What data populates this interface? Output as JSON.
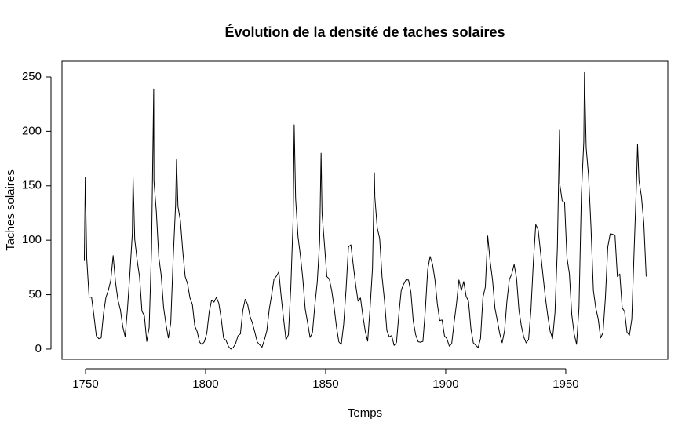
{
  "chart_data": {
    "type": "line",
    "title": "Évolution de la densité de taches solaires",
    "x_label": "Temps",
    "y_label": "Taches solaires",
    "color": "#000000",
    "xlim": [
      1740.2,
      1992.5
    ],
    "ylim": [
      -9.4,
      264.4
    ],
    "xticks": [
      1750,
      1800,
      1850,
      1900,
      1950
    ],
    "yticks": [
      0,
      50,
      100,
      150,
      200,
      250
    ],
    "x": [
      1749.5,
      1749.9,
      1750.5,
      1751.5,
      1752.5,
      1753.5,
      1754.5,
      1755.5,
      1756.5,
      1757.5,
      1758.5,
      1759.5,
      1760.5,
      1761.5,
      1762.5,
      1763.5,
      1764.5,
      1765.5,
      1766.5,
      1767.5,
      1768.5,
      1769.5,
      1769.8,
      1770.5,
      1771.5,
      1772.5,
      1773.5,
      1774.5,
      1775.5,
      1776.5,
      1777.5,
      1778.4,
      1778.5,
      1779.5,
      1780.5,
      1781.5,
      1782.5,
      1783.5,
      1784.5,
      1785.5,
      1786.5,
      1787.5,
      1787.9,
      1788.5,
      1789.5,
      1790.5,
      1791.5,
      1792.5,
      1793.5,
      1794.5,
      1795.5,
      1796.5,
      1797.5,
      1798.5,
      1799.5,
      1800.5,
      1801.5,
      1802.5,
      1803.5,
      1804.5,
      1805.5,
      1806.5,
      1807.5,
      1808.5,
      1809.5,
      1810.5,
      1811.5,
      1812.5,
      1813.5,
      1814.5,
      1815.5,
      1816.5,
      1817.5,
      1818.5,
      1819.5,
      1820.5,
      1821.5,
      1822.5,
      1823.5,
      1824.5,
      1825.5,
      1826.5,
      1827.5,
      1828.5,
      1829.5,
      1830.5,
      1831.5,
      1832.5,
      1833.5,
      1834.5,
      1835.5,
      1836.5,
      1836.9,
      1837.5,
      1838.5,
      1839.5,
      1840.5,
      1841.5,
      1842.5,
      1843.5,
      1844.5,
      1845.5,
      1846.5,
      1847.5,
      1848.1,
      1848.5,
      1849.5,
      1850.5,
      1851.5,
      1852.5,
      1853.5,
      1854.5,
      1855.5,
      1856.5,
      1857.5,
      1858.5,
      1859.5,
      1860.5,
      1861.5,
      1862.5,
      1863.5,
      1864.5,
      1865.5,
      1866.5,
      1867.5,
      1868.5,
      1869.5,
      1870.3,
      1870.5,
      1871.5,
      1872.5,
      1873.5,
      1874.5,
      1875.5,
      1876.5,
      1877.5,
      1878.5,
      1879.5,
      1880.5,
      1881.5,
      1882.5,
      1883.5,
      1884.5,
      1885.5,
      1886.5,
      1887.5,
      1888.5,
      1889.5,
      1890.5,
      1891.5,
      1892.5,
      1893.5,
      1894.5,
      1895.5,
      1896.5,
      1897.5,
      1898.5,
      1899.5,
      1900.5,
      1901.5,
      1902.5,
      1903.5,
      1904.5,
      1905.5,
      1906.5,
      1907.5,
      1908.5,
      1909.5,
      1910.5,
      1911.5,
      1912.5,
      1913.5,
      1914.5,
      1915.5,
      1916.5,
      1917.5,
      1918.5,
      1919.5,
      1920.5,
      1921.5,
      1922.5,
      1923.5,
      1924.5,
      1925.5,
      1926.5,
      1927.5,
      1928.5,
      1929.5,
      1930.5,
      1931.5,
      1932.5,
      1933.5,
      1934.5,
      1935.5,
      1936.5,
      1937.5,
      1938.5,
      1939.5,
      1940.5,
      1941.5,
      1942.5,
      1943.5,
      1944.5,
      1945.5,
      1946.5,
      1947.4,
      1947.5,
      1948.5,
      1949.5,
      1950.5,
      1951.5,
      1952.5,
      1953.5,
      1954.5,
      1955.5,
      1956.5,
      1957.5,
      1957.8,
      1958.5,
      1959.5,
      1960.5,
      1961.5,
      1962.5,
      1963.5,
      1964.5,
      1965.5,
      1966.5,
      1967.5,
      1968.5,
      1969.5,
      1970.5,
      1971.5,
      1972.5,
      1973.5,
      1974.5,
      1975.5,
      1976.5,
      1977.5,
      1978.5,
      1979.5,
      1979.9,
      1980.5,
      1981.5,
      1982.5,
      1983.5
    ],
    "values": [
      80.9,
      158,
      83.4,
      47.7,
      47.8,
      30.7,
      12.2,
      9.6,
      10.2,
      32.4,
      47.6,
      54.0,
      62.9,
      85.9,
      61.2,
      45.1,
      36.4,
      20.9,
      11.4,
      37.8,
      69.8,
      106.1,
      158,
      100.8,
      81.6,
      66.5,
      34.8,
      30.6,
      7.0,
      19.8,
      92.5,
      239,
      154.4,
      125.9,
      84.8,
      68.1,
      38.5,
      22.8,
      10.2,
      24.1,
      82.9,
      132.0,
      174,
      130.9,
      118.1,
      89.9,
      66.6,
      60.0,
      46.9,
      41.0,
      21.3,
      16.0,
      6.4,
      4.1,
      6.8,
      14.5,
      34.0,
      45.0,
      43.1,
      47.5,
      42.2,
      28.1,
      10.1,
      8.1,
      2.5,
      0.0,
      1.4,
      5.0,
      12.2,
      13.9,
      35.4,
      45.8,
      41.1,
      30.1,
      23.9,
      15.6,
      6.6,
      4.0,
      1.8,
      8.5,
      16.6,
      36.3,
      49.6,
      64.2,
      67.0,
      70.9,
      47.8,
      27.5,
      8.5,
      13.2,
      56.9,
      121.5,
      206,
      138.3,
      103.2,
      85.7,
      64.6,
      36.7,
      24.2,
      10.7,
      15.0,
      40.1,
      61.5,
      98.5,
      180,
      124.7,
      96.3,
      66.6,
      64.5,
      54.1,
      39.0,
      20.6,
      6.7,
      4.3,
      22.7,
      54.8,
      93.8,
      95.8,
      77.2,
      59.1,
      44.0,
      47.0,
      30.5,
      16.3,
      7.3,
      37.6,
      74.0,
      162,
      139.0,
      111.2,
      101.6,
      66.2,
      44.7,
      17.0,
      11.3,
      12.4,
      3.4,
      6.0,
      32.3,
      54.3,
      59.7,
      63.7,
      63.5,
      52.2,
      25.4,
      13.1,
      6.8,
      6.3,
      7.1,
      35.6,
      73.0,
      85.1,
      78.0,
      64.0,
      41.8,
      26.2,
      26.7,
      12.1,
      9.5,
      2.7,
      5.0,
      24.4,
      42.0,
      63.5,
      53.8,
      62.0,
      48.5,
      43.9,
      18.6,
      5.7,
      3.6,
      1.4,
      9.6,
      47.4,
      57.1,
      103.9,
      80.6,
      63.6,
      37.6,
      26.1,
      14.2,
      5.8,
      16.7,
      44.3,
      63.9,
      69.0,
      77.8,
      64.9,
      35.7,
      21.2,
      11.1,
      5.7,
      8.7,
      36.1,
      79.7,
      114.4,
      109.6,
      88.8,
      67.8,
      47.5,
      30.6,
      16.3,
      9.6,
      33.2,
      92.6,
      201,
      151.6,
      136.3,
      134.7,
      83.9,
      69.4,
      31.5,
      13.9,
      4.4,
      38.0,
      141.7,
      190.2,
      254,
      184.8,
      159.0,
      112.3,
      53.9,
      37.6,
      27.9,
      10.2,
      15.1,
      47.0,
      93.8,
      105.9,
      105.5,
      104.5,
      66.6,
      68.9,
      38.0,
      34.5,
      15.5,
      12.6,
      27.5,
      92.5,
      155.4,
      188,
      154.6,
      140.4,
      115.9,
      66.6
    ]
  }
}
